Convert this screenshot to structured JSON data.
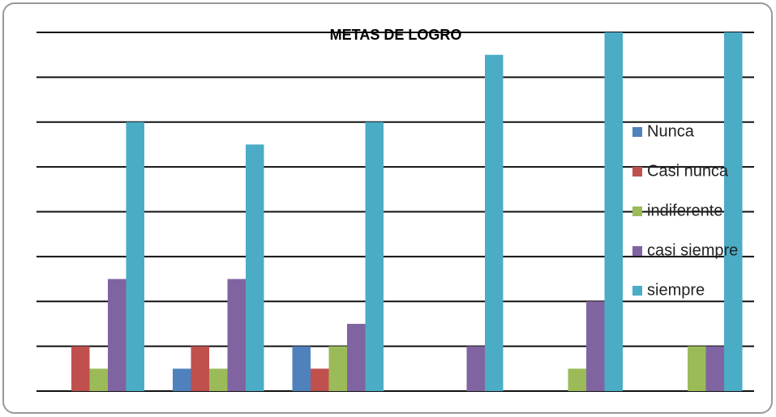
{
  "chart_data": {
    "type": "bar",
    "title": "METAS DE LOGRO",
    "categories": [
      null,
      null,
      null,
      null,
      null,
      null
    ],
    "series": [
      {
        "name": "Nunca",
        "color": "#4f81bd",
        "values": [
          0,
          1,
          2,
          0,
          0,
          0
        ]
      },
      {
        "name": "Casi nunca",
        "color": "#c0504d",
        "values": [
          2,
          2,
          1,
          0,
          0,
          0
        ]
      },
      {
        "name": "indiferente",
        "color": "#9bbb59",
        "values": [
          1,
          1,
          2,
          0,
          1,
          2
        ]
      },
      {
        "name": "casi siempre",
        "color": "#8064a2",
        "values": [
          5,
          5,
          3,
          2,
          4,
          2
        ]
      },
      {
        "name": "siempre",
        "color": "#4bacc6",
        "values": [
          12,
          11,
          12,
          15,
          16,
          16
        ]
      }
    ],
    "ylim": [
      0,
      16
    ],
    "yticks": [
      0,
      2,
      4,
      6,
      8,
      10,
      12,
      14,
      16
    ],
    "grid": true,
    "legend": "right"
  }
}
